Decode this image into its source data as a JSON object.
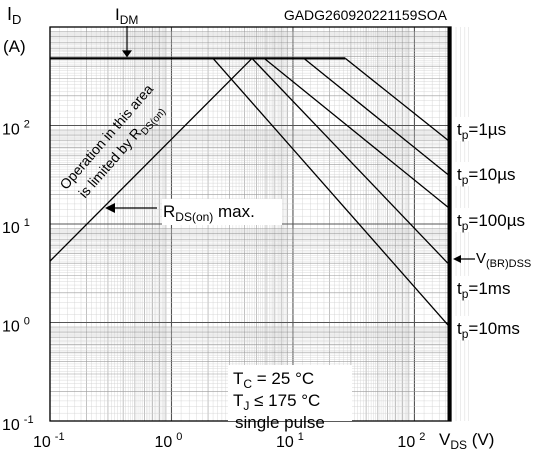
{
  "chart_data": {
    "type": "line",
    "code": "GADG260920221159SOA",
    "x_axis": {
      "label_main": "V",
      "label_sub": "DS",
      "label_unit": "(V)",
      "scale": "log",
      "range": [
        0.1,
        200
      ],
      "ticks": [
        {
          "value": 0.1,
          "base": "10",
          "exp": "-1"
        },
        {
          "value": 1,
          "base": "10",
          "exp": "0"
        },
        {
          "value": 10,
          "base": "10",
          "exp": "1"
        },
        {
          "value": 100,
          "base": "10",
          "exp": "2"
        }
      ]
    },
    "y_axis": {
      "label_main": "I",
      "label_sub": "D",
      "label_unit": "(A)",
      "scale": "log",
      "range": [
        0.1,
        1000
      ],
      "ticks": [
        {
          "value": 0.1,
          "base": "10",
          "exp": "-1"
        },
        {
          "value": 1,
          "base": "10",
          "exp": "0"
        },
        {
          "value": 10,
          "base": "10",
          "exp": "1"
        },
        {
          "value": 100,
          "base": "10",
          "exp": "2"
        }
      ]
    },
    "grid": true,
    "idm": {
      "label_main": "I",
      "label_sub": "DM",
      "value": 480
    },
    "breakdown": {
      "label_main": "V",
      "label_sub": "(BR)DSS",
      "value": 200
    },
    "rds_line": {
      "label_main": "R",
      "label_sub": "DS(on)",
      "label_tail": "max.",
      "points": [
        [
          0.1,
          4.2
        ],
        [
          4.6,
          480
        ]
      ]
    },
    "region_note": {
      "line1": "Operation in this area",
      "line2_main": "is limited by R",
      "line2_sub": "DS(on)"
    },
    "series": [
      {
        "label_main": "t",
        "label_sub": "p",
        "label_tail": "=1µs",
        "points": [
          [
            27,
            480
          ],
          [
            200,
            67
          ]
        ]
      },
      {
        "label_main": "t",
        "label_sub": "p",
        "label_tail": "=10µs",
        "points": [
          [
            12.3,
            480
          ],
          [
            200,
            30
          ]
        ]
      },
      {
        "label_main": "t",
        "label_sub": "p",
        "label_tail": "=100µs",
        "points": [
          [
            5.8,
            480
          ],
          [
            200,
            14
          ]
        ]
      },
      {
        "label_main": "t",
        "label_sub": "p",
        "label_tail": "=1ms",
        "points": [
          [
            4.6,
            480
          ],
          [
            200,
            3.7
          ]
        ]
      },
      {
        "label_main": "t",
        "label_sub": "p",
        "label_tail": "=10ms",
        "points": [
          [
            2.2,
            480
          ],
          [
            200,
            0.87
          ]
        ]
      }
    ],
    "conditions": {
      "tc_main": "T",
      "tc_sub": "C",
      "tc_tail": " = 25 °C",
      "tj_main": "T",
      "tj_sub": "J",
      "tj_tail": " ≤ 175 °C",
      "pulse": "single pulse"
    }
  }
}
